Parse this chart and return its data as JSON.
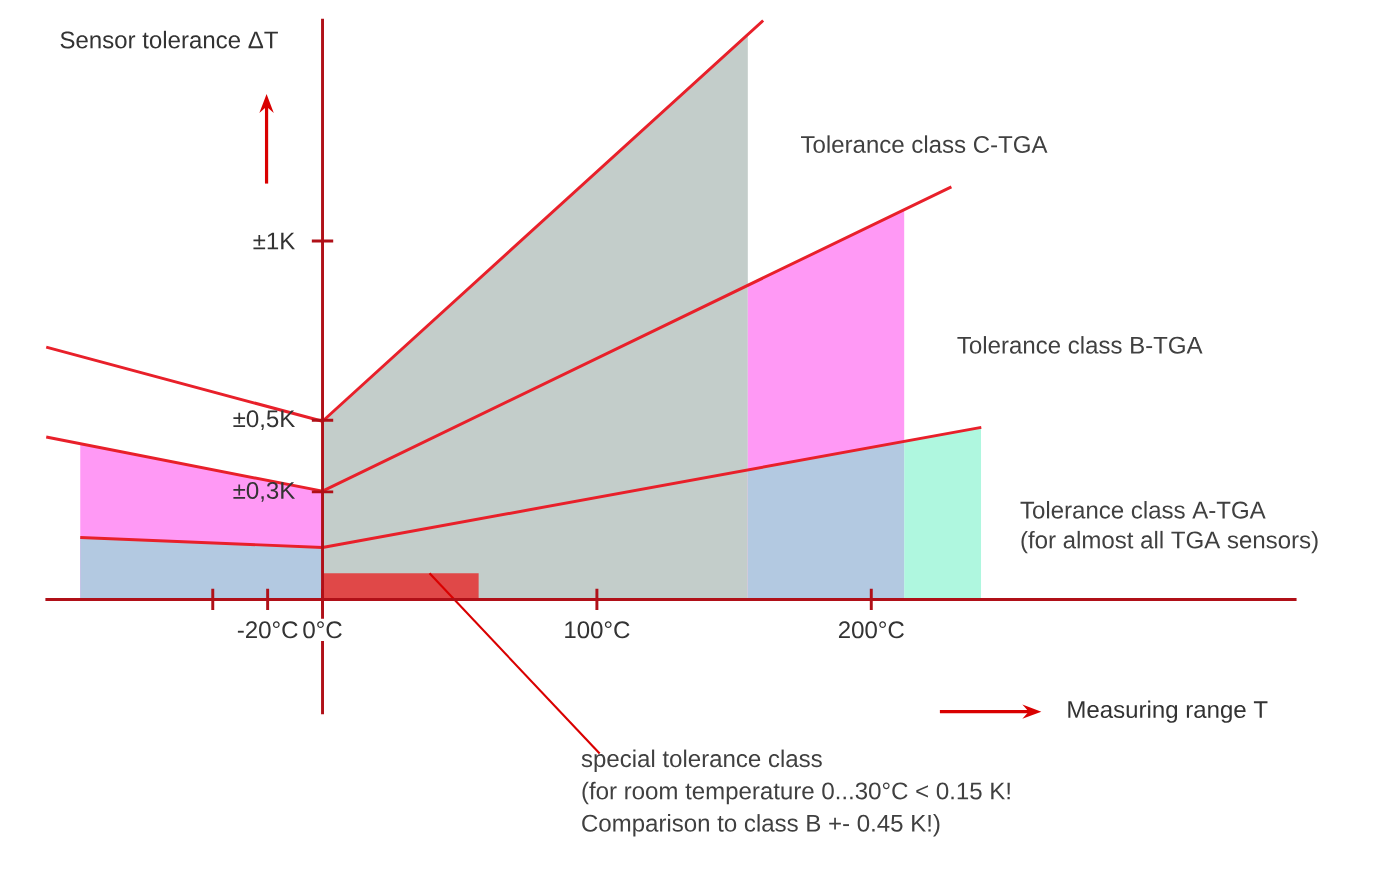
{
  "chart_data": {
    "type": "line",
    "xlabel": "Measuring range T",
    "ylabel": "Sensor tolerance ΔT",
    "xlim": [
      -101,
      355
    ],
    "ylim": [
      -0.32,
      1.62
    ],
    "xticks": [
      {
        "value": -40,
        "label": null
      },
      {
        "value": -20,
        "label": "-20°C"
      },
      {
        "value": 0,
        "label": "0°C"
      },
      {
        "value": 100,
        "label": "100°C"
      },
      {
        "value": 200,
        "label": "200°C"
      }
    ],
    "yticks": [
      {
        "value": 0.3,
        "label": "±0,3K"
      },
      {
        "value": 0.5,
        "label": "±0,5K"
      },
      {
        "value": 1,
        "label": "±1K"
      }
    ],
    "series": [
      {
        "type": "area",
        "color": "#ff99f5",
        "x": [
          -88.3,
          0
        ],
        "values": [
          0.434,
          0.302
        ]
      },
      {
        "type": "area",
        "color": "#b3c9e1",
        "x": [
          -88.3,
          0
        ],
        "values": [
          0.173,
          0.145
        ]
      },
      {
        "type": "area",
        "color": "#c3cdca",
        "x": [
          0,
          155
        ],
        "values": [
          0.497,
          1.581
        ]
      },
      {
        "type": "area",
        "color": "#ff99f5",
        "x": [
          155,
          212
        ],
        "values": [
          0.876,
          1.087
        ]
      },
      {
        "type": "area",
        "color": "#b3c9e1",
        "x": [
          155,
          212
        ],
        "values": [
          0.361,
          0.441
        ]
      },
      {
        "type": "area",
        "color": "#aff7df",
        "x": [
          212,
          240
        ],
        "values": [
          0.441,
          0.48
        ]
      },
      {
        "type": "area",
        "color": "#e04848",
        "x": [
          0,
          56.9
        ],
        "values": [
          0.073,
          0.073
        ]
      },
      {
        "color": "#e8202a",
        "x": [
          -100.7,
          0,
          160.6
        ],
        "values": [
          0.704,
          0.497,
          1.615
        ]
      },
      {
        "color": "#e8202a",
        "x": [
          -100.7,
          0,
          229.2
        ],
        "values": [
          0.453,
          0.302,
          1.151
        ]
      },
      {
        "color": "#e8202a",
        "x": [
          -88.3,
          0,
          240.1
        ],
        "values": [
          0.173,
          0.145,
          0.48
        ]
      }
    ],
    "annotations": [
      "Tolerance class C-TGA",
      "Tolerance class B-TGA",
      "Tolerance class A-TGA",
      "(for almost all TGA sensors)",
      {
        "text": "special tolerance class",
        "x": 39,
        "y": 0.073
      },
      "(for room temperature 0...30°C < 0.15 K!",
      "Comparison to class B +- 0.45 K!)"
    ]
  }
}
